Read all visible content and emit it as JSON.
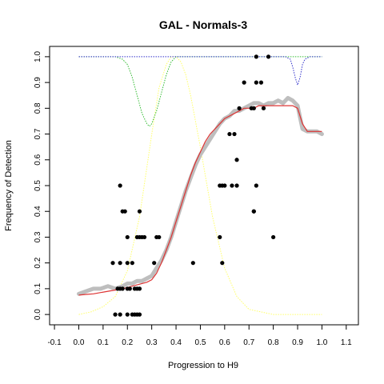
{
  "chart_data": {
    "type": "scatter",
    "title": "GAL - Normals-3",
    "xlabel": "Progression to H9",
    "ylabel": "Frequency of Detection",
    "xlim": [
      -0.12,
      1.15
    ],
    "ylim": [
      -0.04,
      1.04
    ],
    "x_ticks": [
      -0.1,
      0.0,
      0.1,
      0.2,
      0.3,
      0.4,
      0.5,
      0.6,
      0.7,
      0.8,
      0.9,
      1.0,
      1.1
    ],
    "x_tick_labels": [
      "-0.1",
      "0.0",
      "0.1",
      "0.2",
      "0.3",
      "0.4",
      "0.5",
      "0.6",
      "0.7",
      "0.8",
      "0.9",
      "1.0",
      "1.1"
    ],
    "y_ticks": [
      0.0,
      0.1,
      0.2,
      0.3,
      0.4,
      0.5,
      0.6,
      0.7,
      0.8,
      0.9,
      1.0
    ],
    "y_tick_labels": [
      "0.0",
      "0.1",
      "0.2",
      "0.3",
      "0.4",
      "0.5",
      "0.6",
      "0.7",
      "0.8",
      "0.9",
      "1.0"
    ],
    "grid": false,
    "colors": {
      "points": "#000000",
      "smoothed": "#bebebe",
      "fit": "#dd3333",
      "green_curve": "#33bb33",
      "yellow_curve": "#ffff66",
      "blue_curve": "#3333cc"
    },
    "series": [
      {
        "kind": "points",
        "x": [
          0.15,
          0.14,
          0.17,
          0.2,
          0.22,
          0.25,
          0.16,
          0.17,
          0.18,
          0.2,
          0.21,
          0.23,
          0.24,
          0.25,
          0.17,
          0.22,
          0.23,
          0.24,
          0.18,
          0.2,
          0.27,
          0.25,
          0.26,
          0.33,
          0.2,
          0.25,
          0.19,
          0.24,
          0.17,
          0.31,
          0.32,
          0.47,
          0.59,
          0.58,
          0.6,
          0.63,
          0.65,
          0.65,
          0.73,
          0.72,
          0.58,
          0.59,
          0.72,
          0.8,
          0.62,
          0.64,
          0.66,
          0.68,
          0.71,
          0.73,
          0.75,
          0.72,
          0.76,
          0.73,
          0.78
        ],
        "y": [
          0.0,
          0.2,
          0.0,
          0.0,
          0.0,
          0.0,
          0.1,
          0.1,
          0.1,
          0.1,
          0.1,
          0.1,
          0.1,
          0.1,
          0.2,
          0.2,
          0.0,
          0.0,
          0.4,
          0.3,
          0.3,
          0.3,
          0.3,
          0.3,
          0.2,
          0.4,
          0.4,
          0.3,
          0.5,
          0.2,
          0.3,
          0.2,
          0.2,
          0.3,
          0.5,
          0.5,
          0.6,
          0.5,
          0.5,
          0.4,
          0.5,
          0.5,
          0.4,
          0.3,
          0.7,
          0.7,
          0.8,
          0.9,
          0.8,
          0.9,
          0.9,
          0.8,
          0.8,
          1.0,
          1.0
        ]
      },
      {
        "kind": "smoothed",
        "x": [
          0.0,
          0.03,
          0.06,
          0.09,
          0.12,
          0.15,
          0.18,
          0.2,
          0.22,
          0.24,
          0.26,
          0.28,
          0.3,
          0.32,
          0.34,
          0.36,
          0.38,
          0.4,
          0.42,
          0.44,
          0.46,
          0.48,
          0.5,
          0.52,
          0.54,
          0.56,
          0.58,
          0.6,
          0.62,
          0.64,
          0.66,
          0.68,
          0.7,
          0.72,
          0.74,
          0.76,
          0.78,
          0.8,
          0.82,
          0.84,
          0.86,
          0.88,
          0.9,
          0.92,
          0.94,
          0.96,
          0.98,
          1.0
        ],
        "y": [
          0.08,
          0.09,
          0.1,
          0.1,
          0.11,
          0.1,
          0.11,
          0.12,
          0.12,
          0.13,
          0.13,
          0.14,
          0.15,
          0.18,
          0.21,
          0.25,
          0.3,
          0.36,
          0.42,
          0.48,
          0.53,
          0.58,
          0.62,
          0.65,
          0.68,
          0.71,
          0.74,
          0.76,
          0.77,
          0.79,
          0.79,
          0.8,
          0.81,
          0.82,
          0.82,
          0.81,
          0.82,
          0.82,
          0.83,
          0.82,
          0.84,
          0.83,
          0.81,
          0.72,
          0.71,
          0.71,
          0.71,
          0.7
        ]
      },
      {
        "kind": "fit",
        "x": [
          0.0,
          0.03,
          0.06,
          0.09,
          0.12,
          0.15,
          0.18,
          0.2,
          0.22,
          0.24,
          0.26,
          0.28,
          0.3,
          0.32,
          0.34,
          0.36,
          0.38,
          0.4,
          0.42,
          0.44,
          0.46,
          0.48,
          0.5,
          0.52,
          0.54,
          0.56,
          0.58,
          0.6,
          0.62,
          0.64,
          0.66,
          0.68,
          0.7,
          0.72,
          0.74,
          0.76,
          0.78,
          0.8,
          0.82,
          0.84,
          0.86,
          0.88,
          0.9,
          0.92,
          0.94,
          0.96,
          0.98,
          1.0
        ],
        "y": [
          0.075,
          0.078,
          0.08,
          0.085,
          0.09,
          0.095,
          0.1,
          0.105,
          0.11,
          0.115,
          0.12,
          0.125,
          0.135,
          0.16,
          0.2,
          0.25,
          0.3,
          0.36,
          0.42,
          0.48,
          0.54,
          0.59,
          0.63,
          0.67,
          0.7,
          0.72,
          0.74,
          0.76,
          0.77,
          0.78,
          0.79,
          0.8,
          0.8,
          0.8,
          0.81,
          0.81,
          0.81,
          0.81,
          0.81,
          0.81,
          0.81,
          0.81,
          0.8,
          0.74,
          0.71,
          0.71,
          0.71,
          0.71
        ]
      },
      {
        "kind": "green_dotted",
        "x": [
          0.0,
          0.1,
          0.15,
          0.18,
          0.2,
          0.22,
          0.24,
          0.26,
          0.28,
          0.29,
          0.3,
          0.32,
          0.34,
          0.36,
          0.38,
          0.4,
          0.45,
          0.5,
          0.6,
          0.7,
          0.8,
          0.9,
          1.0
        ],
        "y": [
          1.0,
          1.0,
          1.0,
          0.99,
          0.97,
          0.92,
          0.85,
          0.78,
          0.74,
          0.73,
          0.74,
          0.79,
          0.86,
          0.93,
          0.98,
          1.0,
          1.0,
          1.0,
          1.0,
          1.0,
          1.0,
          1.0,
          1.0
        ]
      },
      {
        "kind": "yellow_dotted",
        "x": [
          0.0,
          0.05,
          0.1,
          0.15,
          0.2,
          0.25,
          0.3,
          0.33,
          0.36,
          0.38,
          0.4,
          0.42,
          0.44,
          0.46,
          0.5,
          0.55,
          0.6,
          0.65,
          0.7,
          0.75,
          0.8,
          0.9,
          1.0
        ],
        "y": [
          0.0,
          0.01,
          0.03,
          0.07,
          0.17,
          0.38,
          0.7,
          0.88,
          0.97,
          1.0,
          1.0,
          0.98,
          0.93,
          0.85,
          0.65,
          0.38,
          0.18,
          0.07,
          0.02,
          0.01,
          0.0,
          0.0,
          0.0
        ]
      },
      {
        "kind": "blue_dotted",
        "x": [
          0.0,
          0.5,
          0.85,
          0.87,
          0.88,
          0.89,
          0.9,
          0.91,
          0.92,
          0.93,
          0.95,
          1.0
        ],
        "y": [
          1.0,
          1.0,
          1.0,
          0.99,
          0.96,
          0.92,
          0.89,
          0.92,
          0.97,
          0.99,
          1.0,
          1.0
        ]
      }
    ]
  }
}
